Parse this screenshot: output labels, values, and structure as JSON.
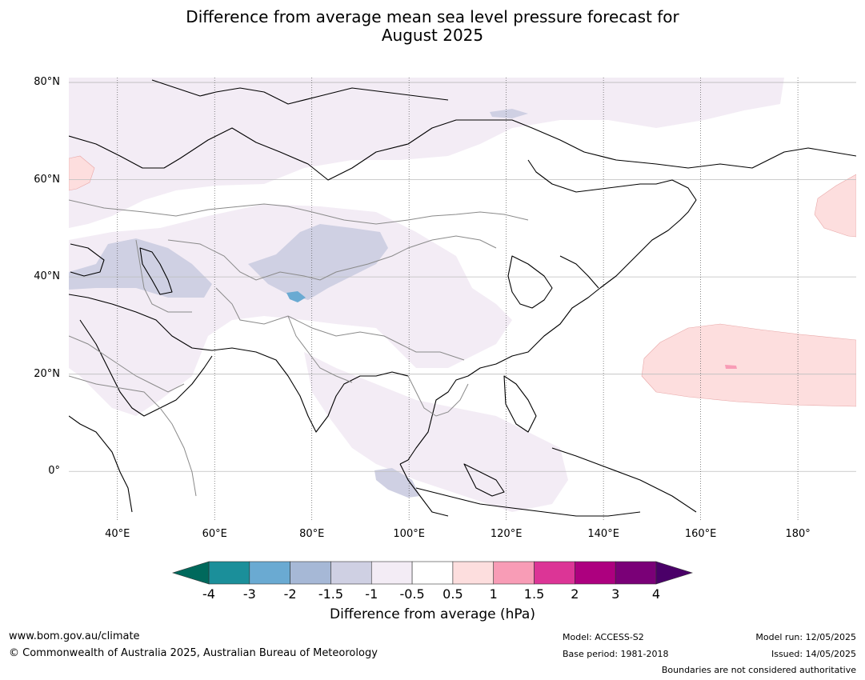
{
  "title": {
    "line1": "Difference from average mean sea level pressure forecast for",
    "line2": "August 2025"
  },
  "map": {
    "lon_range": [
      30,
      192
    ],
    "lat_range": [
      -10,
      81
    ],
    "lat_ticks": [
      {
        "value": 80,
        "label": "80°N"
      },
      {
        "value": 60,
        "label": "60°N"
      },
      {
        "value": 40,
        "label": "40°N"
      },
      {
        "value": 20,
        "label": "20°N"
      },
      {
        "value": 0,
        "label": "0°"
      }
    ],
    "lon_ticks": [
      {
        "value": 40,
        "label": "40°E"
      },
      {
        "value": 60,
        "label": "60°E"
      },
      {
        "value": 80,
        "label": "80°E"
      },
      {
        "value": 100,
        "label": "100°E"
      },
      {
        "value": 120,
        "label": "120°E"
      },
      {
        "value": 140,
        "label": "140°E"
      },
      {
        "value": 160,
        "label": "160°E"
      },
      {
        "value": 180,
        "label": "180°"
      }
    ]
  },
  "colorbar": {
    "label": "Difference from average (hPa)",
    "ticks": [
      "-4",
      "-3",
      "-2",
      "-1.5",
      "-1",
      "-0.5",
      "0.5",
      "1",
      "1.5",
      "2",
      "3",
      "4"
    ],
    "colors": [
      "#1b8f9a",
      "#6aaad2",
      "#a6b8d6",
      "#cfd0e3",
      "#f3ecf5",
      "#ffffff",
      "#fddede",
      "#f89cb6",
      "#dc3596",
      "#ad007f",
      "#7a0077"
    ],
    "under_color": "#00695c",
    "over_color": "#4a0068"
  },
  "footer": {
    "website": "www.bom.gov.au/climate",
    "copyright": "© Commonwealth of Australia 2025, Australian Bureau of Meteorology",
    "model": "Model: ACCESS-S2",
    "base_period": "Base period: 1981-2018",
    "model_run": "Model run: 12/05/2025",
    "issued": "Issued: 14/05/2025",
    "disclaimer": "Boundaries are not considered authoritative"
  }
}
